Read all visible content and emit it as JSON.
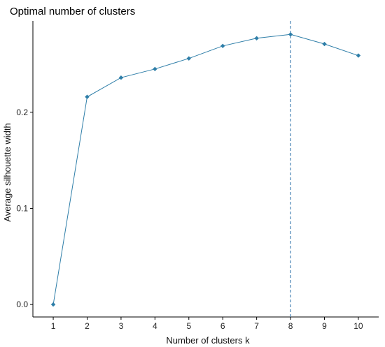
{
  "chart_data": {
    "type": "line",
    "title": "Optimal number of clusters",
    "xlabel": "Number of clusters k",
    "ylabel": "Average silhouette width",
    "x": [
      1,
      2,
      3,
      4,
      5,
      6,
      7,
      8,
      9,
      10
    ],
    "x_tick_labels": [
      "1",
      "2",
      "3",
      "4",
      "5",
      "6",
      "7",
      "8",
      "9",
      "10"
    ],
    "y_ticks": [
      0.0,
      0.1,
      0.2
    ],
    "y_tick_labels": [
      "0.0",
      "0.1",
      "0.2"
    ],
    "xlim": [
      0.4,
      10.6
    ],
    "ylim": [
      -0.013,
      0.295
    ],
    "series": [
      {
        "values": [
          0.0,
          0.216,
          0.236,
          0.245,
          0.256,
          0.269,
          0.277,
          0.281,
          0.271,
          0.259
        ],
        "color": "#2e7ea8"
      }
    ],
    "vline": {
      "x": 8,
      "style": "dashed",
      "color": "#4682b4"
    },
    "grid": false,
    "legend": "none"
  }
}
